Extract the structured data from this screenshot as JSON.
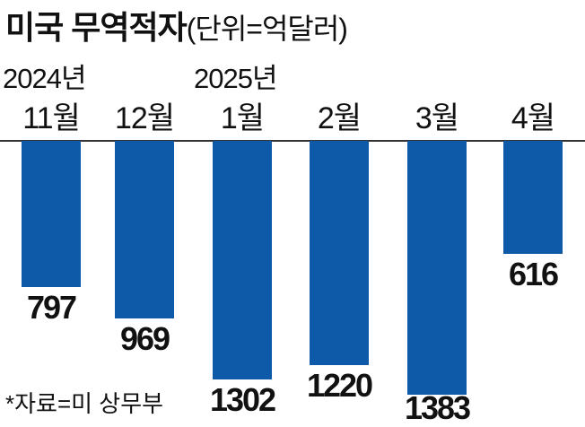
{
  "title": "미국 무역적자",
  "title_unit": "(단위=억달러)",
  "year_labels": [
    {
      "text": "2024년",
      "category_index": 0
    },
    {
      "text": "2025년",
      "category_index": 2
    }
  ],
  "source": "*자료=미 상무부",
  "bar_color": "#0e5aa8",
  "chart_data": {
    "type": "bar",
    "orientation": "downward",
    "categories": [
      "11월",
      "12월",
      "1월",
      "2월",
      "3월",
      "4월"
    ],
    "values": [
      797,
      969,
      1302,
      1220,
      1383,
      616
    ],
    "title": "미국 무역적자",
    "unit": "억달러",
    "ylim": [
      0,
      1383
    ],
    "grid": false,
    "legend": "none"
  }
}
